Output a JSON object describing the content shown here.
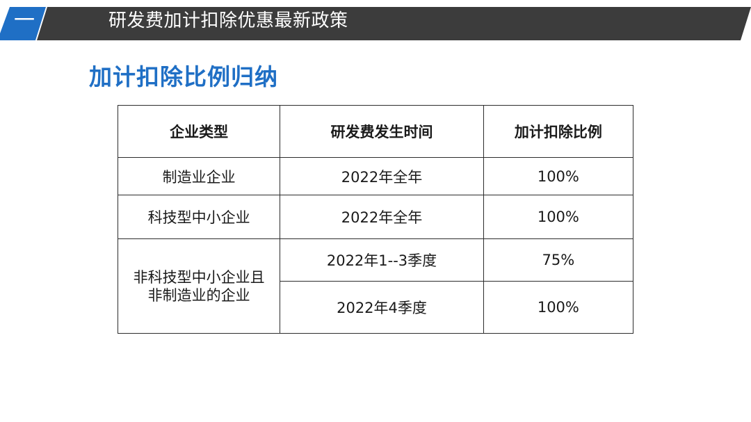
{
  "header": {
    "section_number": "一",
    "title": "研发费加计扣除优惠最新政策",
    "colors": {
      "dark": "#3c3c3c",
      "accent": "#1f6fc5"
    }
  },
  "subtitle": "加计扣除比例归纳",
  "table": {
    "headers": [
      "企业类型",
      "研发费发生时间",
      "加计扣除比例"
    ],
    "rows": [
      {
        "type": "制造业企业",
        "time": "2022年全年",
        "ratio": "100%"
      },
      {
        "type": "科技型中小企业",
        "time": "2022年全年",
        "ratio": "100%"
      },
      {
        "type_lines": [
          "非科技型中小企业且",
          "非制造业的企业"
        ],
        "sub_rows": [
          {
            "time": "2022年1--3季度",
            "ratio": "75%"
          },
          {
            "time": "2022年4季度",
            "ratio": "100%"
          }
        ]
      }
    ]
  }
}
